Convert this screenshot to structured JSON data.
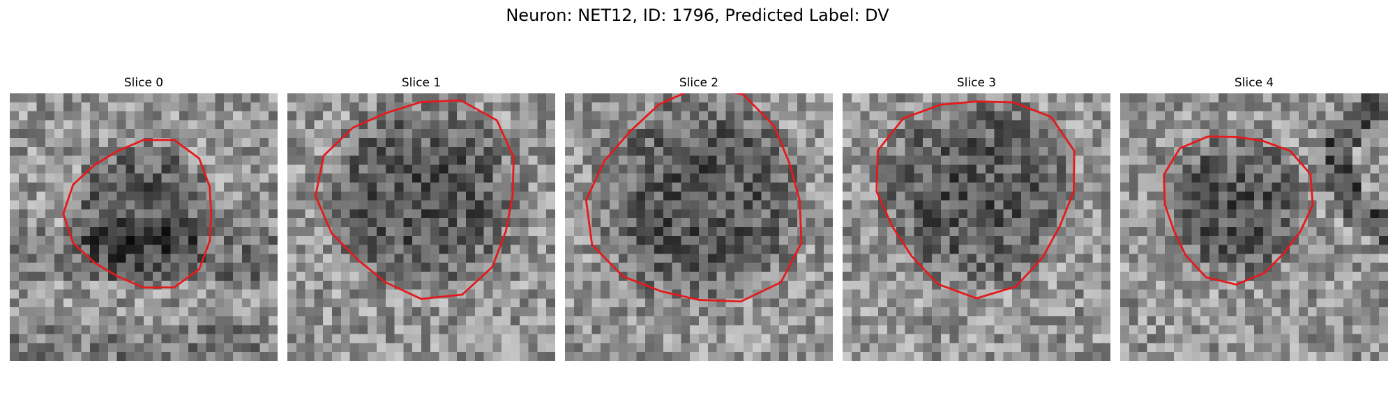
{
  "figure": {
    "title": "Neuron: NET12, ID: 1796, Predicted Label: DV"
  },
  "contour_color": "#e41a1c",
  "slices": [
    {
      "title": "Slice 0",
      "texture": "textured-grey",
      "mask": "contour"
    },
    {
      "title": "Slice 1",
      "texture": "textured-grey",
      "mask": "contour"
    },
    {
      "title": "Slice 2",
      "texture": "textured-grey",
      "mask": "contour"
    },
    {
      "title": "Slice 3",
      "texture": "textured-grey",
      "mask": "contour"
    },
    {
      "title": "Slice 4",
      "texture": "textured-grey",
      "mask": "contour"
    }
  ]
}
